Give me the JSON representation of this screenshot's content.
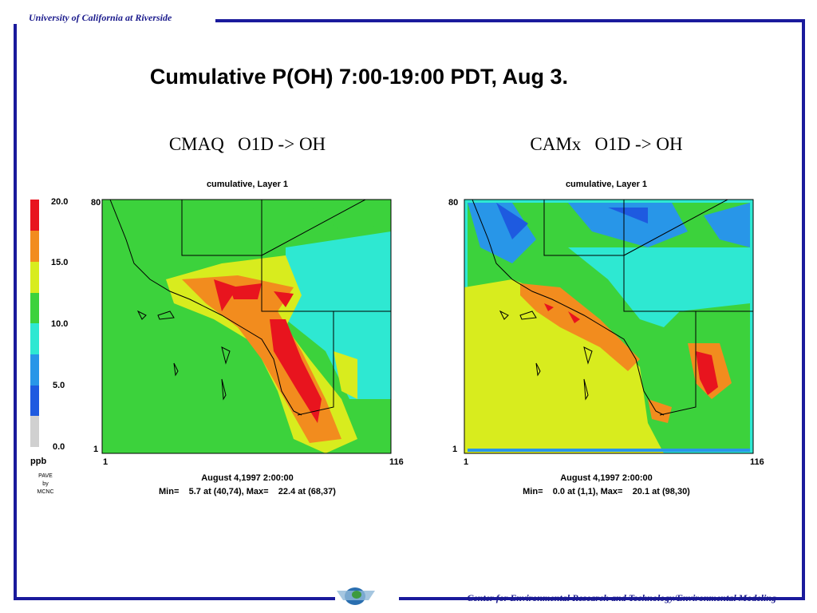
{
  "header": {
    "institution": "University of California at Riverside"
  },
  "title": "Cumulative P(OH) 7:00-19:00 PDT,  Aug 3.",
  "legend": {
    "labels": [
      "20.0",
      "15.0",
      "10.0",
      "5.0",
      "0.0"
    ],
    "unit": "ppb",
    "credit": [
      "PAVE",
      "by",
      "MCNC"
    ]
  },
  "panels": [
    {
      "title": "CMAQ   O1D -> OH",
      "subtitle": "cumulative, Layer 1",
      "y_labels": [
        "80",
        "1"
      ],
      "x_labels": [
        "1",
        "116"
      ],
      "date": "August 4,1997 2:00:00",
      "stats": "Min=    5.7 at (40,74), Max=    22.4 at (68,37)"
    },
    {
      "title": "CAMx   O1D -> OH",
      "subtitle": "cumulative, Layer 1",
      "y_labels": [
        "80",
        "1"
      ],
      "x_labels": [
        "1",
        "116"
      ],
      "date": "August 4,1997 2:00:00",
      "stats": "Min=    0.0 at (1,1), Max=    20.1 at (98,30)"
    }
  ],
  "footer": {
    "text": "Center for Environmental Research and Technology/Environmental Modeling"
  }
}
